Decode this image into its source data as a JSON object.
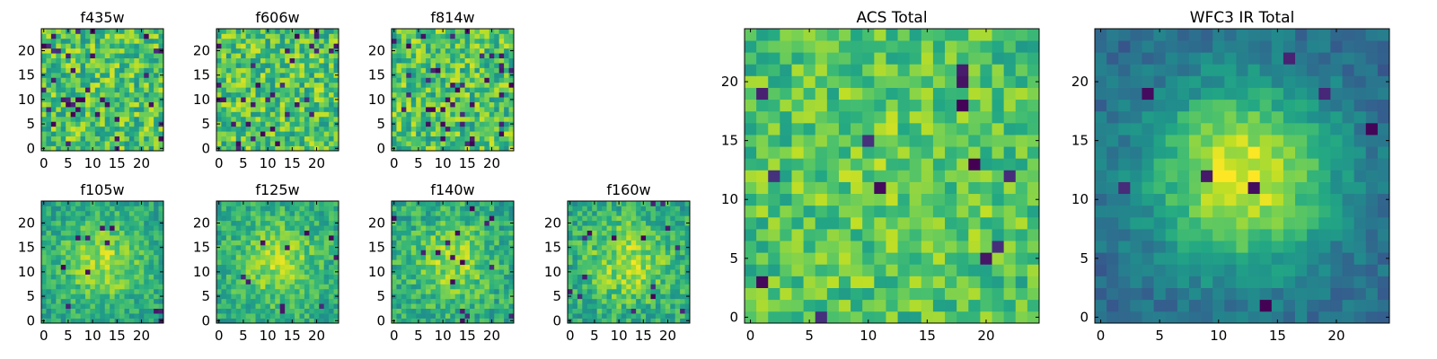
{
  "chart_data": {
    "type": "heatmap",
    "colormap": "viridis",
    "grid": false,
    "legend": "none",
    "panels": [
      {
        "id": "f435w",
        "title": "f435w",
        "grid_size": 25,
        "xlim": [
          -0.5,
          24.5
        ],
        "ylim": [
          -0.5,
          24.5
        ],
        "x_ticks": [
          0,
          5,
          10,
          15,
          20
        ],
        "y_ticks": [
          0,
          5,
          10,
          15,
          20
        ],
        "pattern": {
          "base": 0.72,
          "peak": 0.0,
          "spread": 8,
          "noise": 0.22,
          "dark_fraction": 0.06,
          "seed": 11
        }
      },
      {
        "id": "f606w",
        "title": "f606w",
        "grid_size": 25,
        "xlim": [
          -0.5,
          24.5
        ],
        "ylim": [
          -0.5,
          24.5
        ],
        "x_ticks": [
          0,
          5,
          10,
          15,
          20
        ],
        "y_ticks": [
          0,
          5,
          10,
          15,
          20
        ],
        "pattern": {
          "base": 0.72,
          "peak": 0.0,
          "spread": 8,
          "noise": 0.22,
          "dark_fraction": 0.05,
          "seed": 23
        }
      },
      {
        "id": "f814w",
        "title": "f814w",
        "grid_size": 25,
        "xlim": [
          -0.5,
          24.5
        ],
        "ylim": [
          -0.5,
          24.5
        ],
        "x_ticks": [
          0,
          5,
          10,
          15,
          20
        ],
        "y_ticks": [
          0,
          5,
          10,
          15,
          20
        ],
        "pattern": {
          "base": 0.72,
          "peak": 0.0,
          "spread": 8,
          "noise": 0.22,
          "dark_fraction": 0.06,
          "seed": 37
        }
      },
      {
        "id": "f105w",
        "title": "f105w",
        "grid_size": 25,
        "xlim": [
          -0.5,
          24.5
        ],
        "ylim": [
          -0.5,
          24.5
        ],
        "x_ticks": [
          0,
          5,
          10,
          15,
          20
        ],
        "y_ticks": [
          0,
          5,
          10,
          15,
          20
        ],
        "pattern": {
          "base": 0.58,
          "peak": 0.28,
          "spread": 6,
          "noise": 0.14,
          "dark_fraction": 0.02,
          "seed": 41
        }
      },
      {
        "id": "f125w",
        "title": "f125w",
        "grid_size": 25,
        "xlim": [
          -0.5,
          24.5
        ],
        "ylim": [
          -0.5,
          24.5
        ],
        "x_ticks": [
          0,
          5,
          10,
          15,
          20
        ],
        "y_ticks": [
          0,
          5,
          10,
          15,
          20
        ],
        "pattern": {
          "base": 0.6,
          "peak": 0.26,
          "spread": 6,
          "noise": 0.14,
          "dark_fraction": 0.02,
          "seed": 53
        }
      },
      {
        "id": "f140w",
        "title": "f140w",
        "grid_size": 25,
        "xlim": [
          -0.5,
          24.5
        ],
        "ylim": [
          -0.5,
          24.5
        ],
        "x_ticks": [
          0,
          5,
          10,
          15,
          20
        ],
        "y_ticks": [
          0,
          5,
          10,
          15,
          20
        ],
        "pattern": {
          "base": 0.6,
          "peak": 0.24,
          "spread": 6,
          "noise": 0.16,
          "dark_fraction": 0.03,
          "seed": 67
        }
      },
      {
        "id": "f160w",
        "title": "f160w",
        "grid_size": 25,
        "xlim": [
          -0.5,
          24.5
        ],
        "ylim": [
          -0.5,
          24.5
        ],
        "x_ticks": [
          0,
          5,
          10,
          15,
          20
        ],
        "y_ticks": [
          0,
          5,
          10,
          15,
          20
        ],
        "pattern": {
          "base": 0.6,
          "peak": 0.26,
          "spread": 6,
          "noise": 0.16,
          "dark_fraction": 0.02,
          "seed": 79
        }
      },
      {
        "id": "acs_total",
        "title": "ACS Total",
        "grid_size": 25,
        "xlim": [
          -0.5,
          24.5
        ],
        "ylim": [
          -0.5,
          24.5
        ],
        "x_ticks": [
          0,
          5,
          10,
          15,
          20
        ],
        "y_ticks": [
          0,
          5,
          10,
          15,
          20
        ],
        "pattern": {
          "base": 0.7,
          "peak": 0.08,
          "spread": 7,
          "noise": 0.17,
          "dark_fraction": 0.025,
          "seed": 97
        }
      },
      {
        "id": "wfc3_ir_total",
        "title": "WFC3 IR Total",
        "grid_size": 25,
        "xlim": [
          -0.5,
          24.5
        ],
        "ylim": [
          -0.5,
          24.5
        ],
        "x_ticks": [
          0,
          5,
          10,
          15,
          20
        ],
        "y_ticks": [
          0,
          5,
          10,
          15,
          20
        ],
        "pattern": {
          "base": 0.34,
          "peak": 0.62,
          "spread": 5.5,
          "noise": 0.09,
          "dark_fraction": 0.02,
          "seed": 113
        }
      }
    ]
  }
}
